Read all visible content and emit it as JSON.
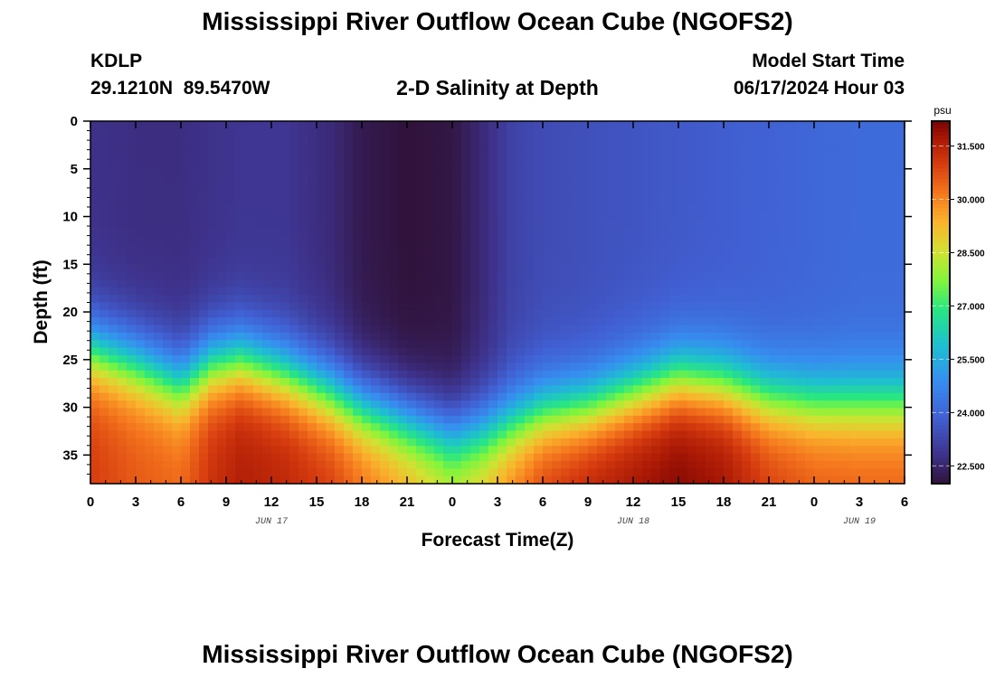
{
  "page": {
    "title_top": "Mississippi River Outflow Ocean Cube (NGOFS2)",
    "title_bottom": "Mississippi River Outflow Ocean Cube (NGOFS2)",
    "station_id": "KDLP",
    "station_coords": "29.1210N  89.5470W",
    "plot_title": "2-D Salinity at Depth",
    "model_start_label": "Model Start Time",
    "model_start_value": "06/17/2024 Hour 03"
  },
  "chart_data": {
    "type": "heatmap",
    "title": "2-D Salinity at Depth",
    "xlabel": "Forecast Time(Z)",
    "ylabel": "Depth (ft)",
    "x_ticks": [
      "0",
      "3",
      "6",
      "9",
      "12",
      "15",
      "18",
      "21",
      "0",
      "3",
      "6",
      "9",
      "12",
      "15",
      "18",
      "21",
      "0",
      "3",
      "6"
    ],
    "date_labels": [
      {
        "text": "JUN 17",
        "at_tick": 4
      },
      {
        "text": "JUN 18",
        "at_tick": 12
      },
      {
        "text": "JUN 19",
        "at_tick": 17
      }
    ],
    "y_ticks": [
      0,
      5,
      10,
      15,
      20,
      25,
      30,
      35
    ],
    "ylim": [
      0,
      38
    ],
    "xlim_hours": [
      0,
      54
    ],
    "colorbar": {
      "unit": "psu",
      "min": 22.0,
      "max": 32.2,
      "ticks": [
        "31.500",
        "30.000",
        "28.500",
        "27.000",
        "25.500",
        "24.000",
        "22.500"
      ],
      "tick_values": [
        31.5,
        30.0,
        28.5,
        27.0,
        25.5,
        24.0,
        22.5
      ]
    },
    "profiles": [
      {
        "hour": 0,
        "surface": 22.8,
        "halocline_ft": 24.0,
        "bottom": 31.0
      },
      {
        "hour": 3,
        "surface": 22.7,
        "halocline_ft": 25.5,
        "bottom": 30.6
      },
      {
        "hour": 6,
        "surface": 22.7,
        "halocline_ft": 27.5,
        "bottom": 30.4
      },
      {
        "hour": 8,
        "surface": 22.8,
        "halocline_ft": 25.5,
        "bottom": 31.2
      },
      {
        "hour": 10,
        "surface": 22.9,
        "halocline_ft": 25.0,
        "bottom": 31.6
      },
      {
        "hour": 13,
        "surface": 22.9,
        "halocline_ft": 26.5,
        "bottom": 31.4
      },
      {
        "hour": 16,
        "surface": 22.6,
        "halocline_ft": 28.5,
        "bottom": 31.0
      },
      {
        "hour": 18,
        "surface": 22.2,
        "halocline_ft": 30.0,
        "bottom": 30.4
      },
      {
        "hour": 21,
        "surface": 22.0,
        "halocline_ft": 31.5,
        "bottom": 29.6
      },
      {
        "hour": 24,
        "surface": 22.1,
        "halocline_ft": 33.0,
        "bottom": 28.8
      },
      {
        "hour": 26,
        "surface": 22.6,
        "halocline_ft": 32.5,
        "bottom": 29.3
      },
      {
        "hour": 28,
        "surface": 23.2,
        "halocline_ft": 31.5,
        "bottom": 30.2
      },
      {
        "hour": 30,
        "surface": 23.4,
        "halocline_ft": 30.5,
        "bottom": 31.0
      },
      {
        "hour": 33,
        "surface": 23.5,
        "halocline_ft": 30.0,
        "bottom": 31.5
      },
      {
        "hour": 36,
        "surface": 23.6,
        "halocline_ft": 28.5,
        "bottom": 31.8
      },
      {
        "hour": 39,
        "surface": 23.7,
        "halocline_ft": 27.0,
        "bottom": 32.1
      },
      {
        "hour": 42,
        "surface": 23.8,
        "halocline_ft": 27.5,
        "bottom": 31.8
      },
      {
        "hour": 45,
        "surface": 23.9,
        "halocline_ft": 29.0,
        "bottom": 31.0
      },
      {
        "hour": 48,
        "surface": 24.0,
        "halocline_ft": 29.5,
        "bottom": 30.6
      },
      {
        "hour": 51,
        "surface": 24.1,
        "halocline_ft": 29.5,
        "bottom": 30.5
      },
      {
        "hour": 54,
        "surface": 24.1,
        "halocline_ft": 29.5,
        "bottom": 30.5
      }
    ]
  }
}
